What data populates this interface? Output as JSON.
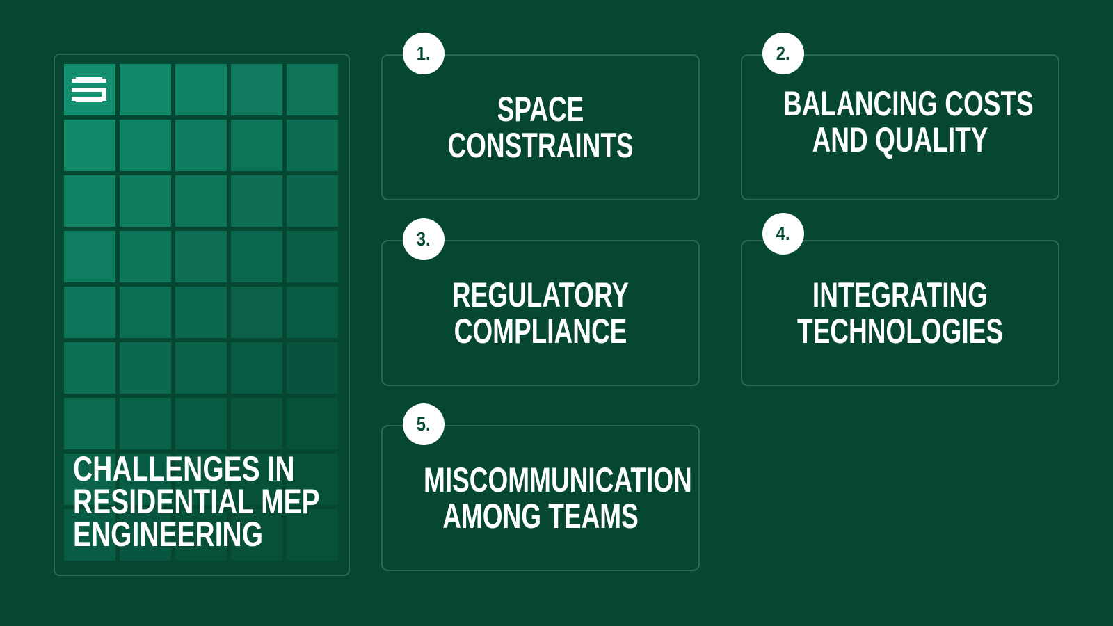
{
  "title_panel": {
    "logo": "mep-logo-icon",
    "title_lines": [
      "CHALLENGES IN",
      "RESIDENTIAL MEP",
      "ENGINEERING"
    ]
  },
  "colors": {
    "background": "#054731",
    "tile_light": "#13906f",
    "tile_dark": "#07503a",
    "border": "#2b6b52",
    "badge": "#ffffff"
  },
  "challenges": [
    {
      "number": "1.",
      "lines": [
        "SPACE",
        "CONSTRAINTS"
      ]
    },
    {
      "number": "2.",
      "lines": [
        "BALANCING COSTS",
        "AND QUALITY"
      ]
    },
    {
      "number": "3.",
      "lines": [
        "REGULATORY",
        "COMPLIANCE"
      ]
    },
    {
      "number": "4.",
      "lines": [
        "INTEGRATING",
        "TECHNOLOGIES"
      ]
    },
    {
      "number": "5.",
      "lines": [
        "MISCOMMUNICATION",
        "AMONG TEAMS"
      ]
    }
  ]
}
